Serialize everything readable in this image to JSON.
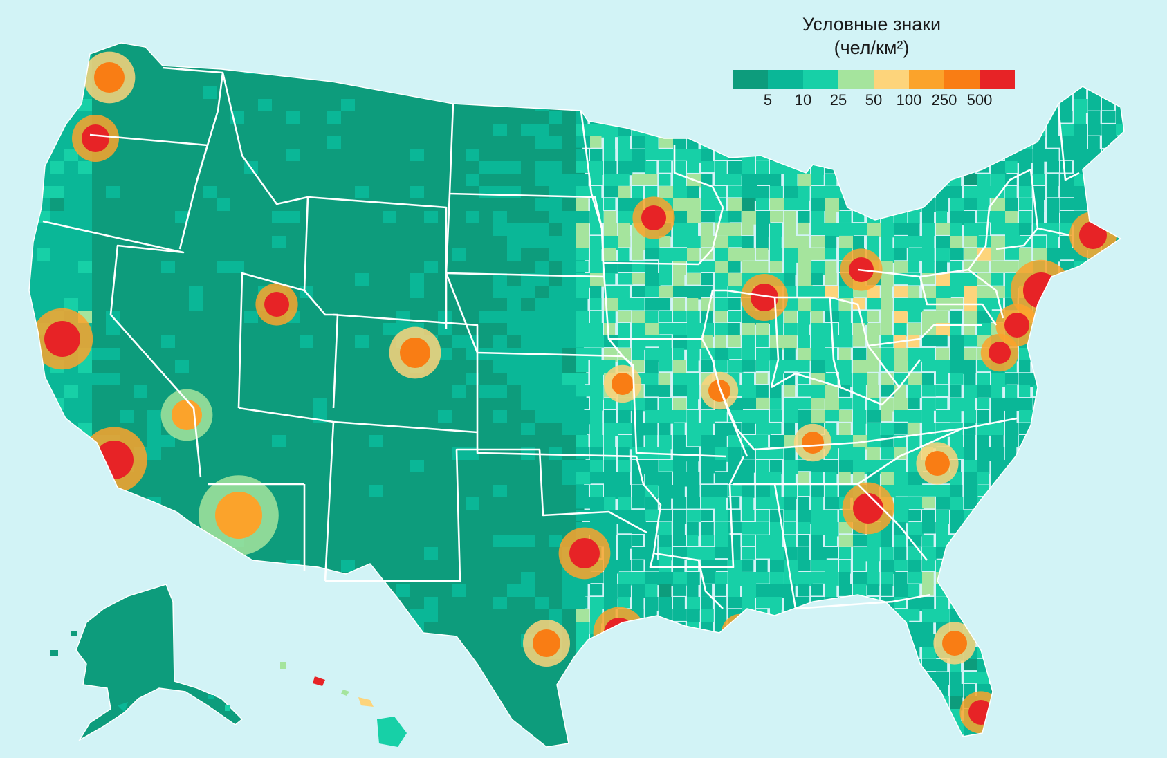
{
  "legend": {
    "title": "Условные знаки",
    "units": "(чел/км²)",
    "colors": [
      "#0d9c7c",
      "#0ab797",
      "#17d0a7",
      "#a5e49d",
      "#fdd47b",
      "#fba32b",
      "#f97d14",
      "#e72326"
    ],
    "ticks": [
      "5",
      "10",
      "25",
      "50",
      "100",
      "250",
      "500"
    ]
  },
  "map": {
    "subject": "population density by county",
    "state_border_color": "#ffffff",
    "hotspots": [
      {
        "name": "seattle",
        "level": 6
      },
      {
        "name": "portland",
        "level": 7
      },
      {
        "name": "san-francisco-bay",
        "level": 7
      },
      {
        "name": "los-angeles",
        "level": 7
      },
      {
        "name": "salt-lake-city",
        "level": 7
      },
      {
        "name": "denver",
        "level": 6
      },
      {
        "name": "minneapolis",
        "level": 7
      },
      {
        "name": "chicago",
        "level": 7
      },
      {
        "name": "detroit",
        "level": 7
      },
      {
        "name": "new-york",
        "level": 7
      },
      {
        "name": "boston",
        "level": 7
      },
      {
        "name": "philadelphia",
        "level": 7
      },
      {
        "name": "washington-dc",
        "level": 7
      },
      {
        "name": "atlanta",
        "level": 7
      },
      {
        "name": "dallas",
        "level": 7
      },
      {
        "name": "houston",
        "level": 7
      },
      {
        "name": "san-antonio",
        "level": 6
      },
      {
        "name": "miami",
        "level": 7
      },
      {
        "name": "orlando",
        "level": 6
      },
      {
        "name": "new-orleans",
        "level": 7
      },
      {
        "name": "st-louis",
        "level": 6
      },
      {
        "name": "kansas-city",
        "level": 6
      },
      {
        "name": "nashville",
        "level": 6
      },
      {
        "name": "charlotte",
        "level": 6
      },
      {
        "name": "phoenix",
        "level": 5
      },
      {
        "name": "las-vegas",
        "level": 5
      },
      {
        "name": "honolulu",
        "level": 7
      }
    ]
  }
}
